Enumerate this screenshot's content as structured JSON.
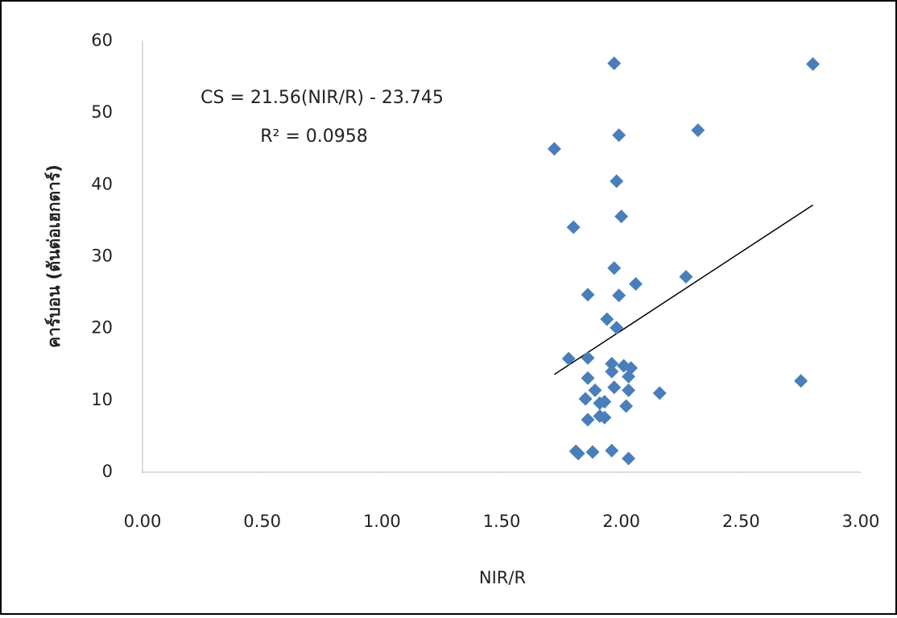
{
  "chart_data": {
    "type": "scatter",
    "y_label": "คาร์บอน (ตันต่อเฮกตาร์)",
    "x_label": "NIR/R",
    "annotations": [
      "CS = 21.56(NIR/R) - 23.745",
      "R² = 0.0958"
    ],
    "trendline": true,
    "color": "#4a7ebb",
    "x": [
      1.72,
      1.97,
      2.8,
      2.32,
      1.99,
      1.98,
      2.0,
      1.8,
      1.97,
      2.27,
      2.06,
      1.86,
      1.99,
      1.94,
      1.98,
      1.78,
      1.86,
      1.96,
      2.01,
      2.04,
      1.96,
      2.03,
      1.86,
      2.75,
      1.89,
      1.97,
      2.03,
      2.16,
      1.85,
      1.91,
      1.93,
      2.02,
      1.91,
      1.93,
      1.86,
      1.81,
      1.82,
      1.88,
      1.96,
      2.03
    ],
    "values": [
      45.0,
      56.9,
      56.8,
      47.6,
      46.9,
      40.5,
      35.6,
      34.1,
      28.4,
      27.2,
      26.2,
      24.7,
      24.6,
      21.3,
      20.1,
      15.8,
      15.9,
      15.1,
      14.8,
      14.5,
      14.0,
      13.3,
      13.1,
      12.7,
      11.4,
      11.8,
      11.4,
      11.0,
      10.2,
      9.6,
      9.8,
      9.2,
      7.8,
      7.6,
      7.3,
      2.9,
      2.6,
      2.8,
      3.0,
      1.9
    ],
    "xlim": [
      0,
      3
    ],
    "xticks": [
      {
        "value": 0,
        "label": "0.00"
      },
      {
        "value": 0.5,
        "label": "0.50"
      },
      {
        "value": 1,
        "label": "1.00"
      },
      {
        "value": 1.5,
        "label": "1.50"
      },
      {
        "value": 2,
        "label": "2.00"
      },
      {
        "value": 2.5,
        "label": "2.50"
      },
      {
        "value": 3,
        "label": "3.00"
      }
    ],
    "ylim": [
      0,
      60
    ],
    "yticks": [
      0,
      10,
      20,
      30,
      40,
      50,
      60
    ]
  }
}
